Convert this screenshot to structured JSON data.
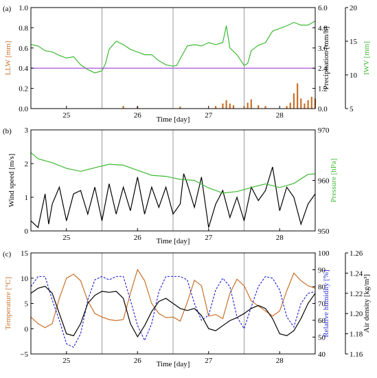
{
  "figure": {
    "colors": {
      "orange": "#c8702a",
      "green": "#3db832",
      "purple": "#9b3fd4",
      "blue": "#2a2ad8",
      "black": "#000000",
      "grid": "#999999",
      "fill_orange": "#e8a068"
    }
  },
  "chart_data": [
    {
      "panel": "(a)",
      "type": "line",
      "xlabel": "Time [day]",
      "xlim": [
        24.5,
        28.5
      ],
      "xticks": [
        25,
        26,
        27,
        28
      ],
      "vlines": [
        25.5,
        26.5,
        27.5
      ],
      "axes": {
        "left": {
          "label": "LLW [mm]",
          "lim": [
            0,
            1.0
          ],
          "ticks": [
            "0.0",
            "0.2",
            "0.4",
            "0.6",
            "0.8",
            "1.0"
          ],
          "color": "#c8702a"
        },
        "right1": {
          "label": "Precipitation [mm/h]",
          "lim": [
            0,
            6.0
          ],
          "ticks": [
            "0.0",
            "1.2",
            "2.4",
            "3.6",
            "4.8",
            "6.0"
          ]
        },
        "right2": {
          "label": "IWV [mm]",
          "lim": [
            5,
            20
          ],
          "ticks": [
            "5",
            "10",
            "15",
            "20"
          ],
          "color": "#3db832"
        }
      },
      "series": [
        {
          "axis": "right2",
          "color": "#3db832",
          "x": [
            24.5,
            24.6,
            24.7,
            24.8,
            24.9,
            25.0,
            25.1,
            25.2,
            25.3,
            25.4,
            25.5,
            25.55,
            25.6,
            25.7,
            25.8,
            25.9,
            26.0,
            26.1,
            26.2,
            26.3,
            26.4,
            26.5,
            26.55,
            26.6,
            26.7,
            26.8,
            26.9,
            27.0,
            27.1,
            27.2,
            27.25,
            27.3,
            27.4,
            27.5,
            27.55,
            27.6,
            27.7,
            27.8,
            27.9,
            28.0,
            28.1,
            28.2,
            28.3,
            28.4,
            28.5
          ],
          "y": [
            14.5,
            14.3,
            13.6,
            13.4,
            12.9,
            12.5,
            12.7,
            11.5,
            10.8,
            10.3,
            10.6,
            11.7,
            13.8,
            15.0,
            14.5,
            13.8,
            13.4,
            13.0,
            13.0,
            12.1,
            11.5,
            11.3,
            11.4,
            12.4,
            14.3,
            14.5,
            14.3,
            14.8,
            14.5,
            14.8,
            17.3,
            14.0,
            13.0,
            11.4,
            11.7,
            13.6,
            14.4,
            14.8,
            16.5,
            16.9,
            17.3,
            17.8,
            17.4,
            17.4,
            18.0
          ]
        },
        {
          "axis": "left",
          "color": "#9b3fd4",
          "x": [
            24.5,
            28.5
          ],
          "y": [
            0.4,
            0.4
          ]
        },
        {
          "axis": "right1",
          "type": "bar",
          "color": "#c8702a",
          "x": [
            25.8,
            26.0,
            26.6,
            27.1,
            27.2,
            27.25,
            27.3,
            27.35,
            27.5,
            27.55,
            27.6,
            27.7,
            27.8,
            28.1,
            28.15,
            28.2,
            28.25,
            28.3,
            28.35,
            28.4,
            28.45,
            28.5
          ],
          "y": [
            0.15,
            0.12,
            0.12,
            0.15,
            0.3,
            0.5,
            0.3,
            0.2,
            0.15,
            0.35,
            0.55,
            0.2,
            0.15,
            0.15,
            0.35,
            0.9,
            1.5,
            0.6,
            0.3,
            0.5,
            0.7,
            0.6
          ]
        }
      ]
    },
    {
      "panel": "(b)",
      "type": "line",
      "xlabel": "Time [day]",
      "xlim": [
        24.5,
        28.5
      ],
      "xticks": [
        25,
        26,
        27,
        28
      ],
      "vlines": [
        25.5,
        26.5,
        27.5
      ],
      "axes": {
        "left": {
          "label": "Wind speed [m/s]",
          "lim": [
            0,
            3
          ],
          "ticks": [
            "0",
            "1",
            "2",
            "3"
          ]
        },
        "right": {
          "label": "Pressure [hPa]",
          "lim": [
            950,
            970
          ],
          "ticks": [
            "950",
            "960",
            "970"
          ],
          "color": "#3db832"
        }
      },
      "series": [
        {
          "axis": "left",
          "color": "#000000",
          "x": [
            24.5,
            24.6,
            24.7,
            24.75,
            24.8,
            24.9,
            25.0,
            25.1,
            25.2,
            25.3,
            25.4,
            25.5,
            25.6,
            25.7,
            25.8,
            25.9,
            26.0,
            26.1,
            26.2,
            26.3,
            26.4,
            26.5,
            26.6,
            26.65,
            26.7,
            26.8,
            26.9,
            27.0,
            27.1,
            27.2,
            27.3,
            27.4,
            27.5,
            27.6,
            27.7,
            27.8,
            27.9,
            28.0,
            28.1,
            28.2,
            28.3,
            28.4,
            28.5
          ],
          "y": [
            0.3,
            0.1,
            1.1,
            0.2,
            0.8,
            1.3,
            0.3,
            1.1,
            1.2,
            0.5,
            1.3,
            0.3,
            1.4,
            0.5,
            1.3,
            0.6,
            1.6,
            0.5,
            1.3,
            0.7,
            1.3,
            0.5,
            0.8,
            1.7,
            1.4,
            0.7,
            1.6,
            0.1,
            0.8,
            1.2,
            0.4,
            1.0,
            0.3,
            1.3,
            0.9,
            1.2,
            1.9,
            0.6,
            1.3,
            1.0,
            0.2,
            0.8,
            1.1
          ]
        },
        {
          "axis": "right",
          "color": "#3db832",
          "x": [
            24.5,
            24.6,
            24.8,
            25.0,
            25.2,
            25.4,
            25.6,
            25.8,
            26.0,
            26.2,
            26.4,
            26.6,
            26.8,
            27.0,
            27.2,
            27.4,
            27.6,
            27.8,
            28.0,
            28.2,
            28.4,
            28.5
          ],
          "y": [
            965.5,
            964.3,
            963.5,
            962.4,
            961.8,
            962.5,
            963.2,
            963.0,
            962.0,
            961.0,
            960.8,
            960.2,
            960.0,
            958.5,
            957.5,
            957.8,
            958.6,
            959.3,
            958.6,
            959.4,
            961.2,
            961.3
          ]
        }
      ]
    },
    {
      "panel": "(c)",
      "type": "line",
      "xlabel": "Time [day]",
      "xlim": [
        24.5,
        28.5
      ],
      "xticks": [
        25,
        26,
        27,
        28
      ],
      "vlines": [
        25.5,
        26.5,
        27.5
      ],
      "axes": {
        "left": {
          "label": "Temperature [°C]",
          "lim": [
            -5,
            15
          ],
          "ticks": [
            "−5",
            "0",
            "5",
            "10",
            "15"
          ],
          "color": "#c8702a"
        },
        "right1": {
          "label": "Relative humidity [%]",
          "lim": [
            40,
            100
          ],
          "ticks": [
            "40",
            "50",
            "60",
            "70",
            "80",
            "90",
            "100"
          ],
          "color": "#2a2ad8"
        },
        "right2": {
          "label": "Air density [kg/m³]",
          "lim": [
            1.16,
            1.26
          ],
          "ticks": [
            "1.16",
            "1.18",
            "1.20",
            "1.22",
            "1.24",
            "1.26"
          ]
        }
      },
      "series": [
        {
          "axis": "left",
          "color": "#c8702a",
          "x": [
            24.5,
            24.6,
            24.7,
            24.8,
            24.9,
            25.0,
            25.1,
            25.2,
            25.3,
            25.4,
            25.5,
            25.6,
            25.7,
            25.8,
            25.9,
            26.0,
            26.1,
            26.2,
            26.3,
            26.4,
            26.5,
            26.6,
            26.7,
            26.8,
            26.9,
            27.0,
            27.1,
            27.2,
            27.3,
            27.4,
            27.5,
            27.6,
            27.7,
            27.8,
            27.9,
            28.0,
            28.1,
            28.2,
            28.3,
            28.4,
            28.5
          ],
          "y": [
            2.3,
            1.0,
            0.2,
            1.0,
            6.0,
            10.0,
            10.8,
            9.5,
            5.5,
            3.0,
            2.3,
            1.8,
            1.6,
            1.8,
            7.0,
            11.7,
            9.5,
            5.0,
            3.0,
            2.2,
            2.3,
            1.5,
            5.2,
            9.6,
            8.5,
            2.5,
            2.8,
            2.0,
            7.0,
            9.8,
            8.5,
            5.5,
            4.5,
            3.5,
            2.5,
            3.5,
            7.5,
            11.0,
            9.5,
            8.5,
            8.0
          ]
        },
        {
          "axis": "right1",
          "color": "#2a2ad8",
          "dashed": true,
          "x": [
            24.5,
            24.6,
            24.7,
            24.8,
            24.9,
            25.0,
            25.1,
            25.2,
            25.3,
            25.4,
            25.5,
            25.6,
            25.7,
            25.8,
            25.9,
            26.0,
            26.1,
            26.2,
            26.3,
            26.4,
            26.5,
            26.6,
            26.7,
            26.8,
            26.9,
            27.0,
            27.1,
            27.2,
            27.3,
            27.4,
            27.5,
            27.6,
            27.7,
            27.8,
            27.9,
            28.0,
            28.1,
            28.2,
            28.3,
            28.4,
            28.5
          ],
          "y": [
            80,
            86,
            86,
            72,
            60,
            46,
            44,
            52,
            72,
            84,
            86,
            84,
            86,
            86,
            72,
            57,
            48,
            58,
            77,
            86,
            86,
            86,
            84,
            70,
            60,
            63,
            78,
            85,
            80,
            62,
            55,
            68,
            80,
            86,
            85,
            78,
            62,
            56,
            70,
            76,
            77
          ]
        },
        {
          "axis": "right2",
          "color": "#000000",
          "x": [
            24.5,
            24.6,
            24.7,
            24.8,
            24.9,
            25.0,
            25.1,
            25.2,
            25.3,
            25.4,
            25.5,
            25.6,
            25.7,
            25.8,
            25.9,
            26.0,
            26.1,
            26.2,
            26.3,
            26.4,
            26.5,
            26.6,
            26.7,
            26.8,
            26.9,
            27.0,
            27.1,
            27.2,
            27.3,
            27.4,
            27.5,
            27.6,
            27.7,
            27.8,
            27.9,
            28.0,
            28.1,
            28.2,
            28.3,
            28.4,
            28.5
          ],
          "y": [
            1.22,
            1.225,
            1.227,
            1.22,
            1.2,
            1.18,
            1.178,
            1.19,
            1.21,
            1.218,
            1.222,
            1.221,
            1.222,
            1.215,
            1.19,
            1.177,
            1.188,
            1.202,
            1.212,
            1.215,
            1.21,
            1.205,
            1.203,
            1.205,
            1.198,
            1.185,
            1.183,
            1.188,
            1.193,
            1.196,
            1.2,
            1.205,
            1.208,
            1.205,
            1.195,
            1.18,
            1.178,
            1.183,
            1.195,
            1.21,
            1.22
          ]
        }
      ]
    }
  ]
}
